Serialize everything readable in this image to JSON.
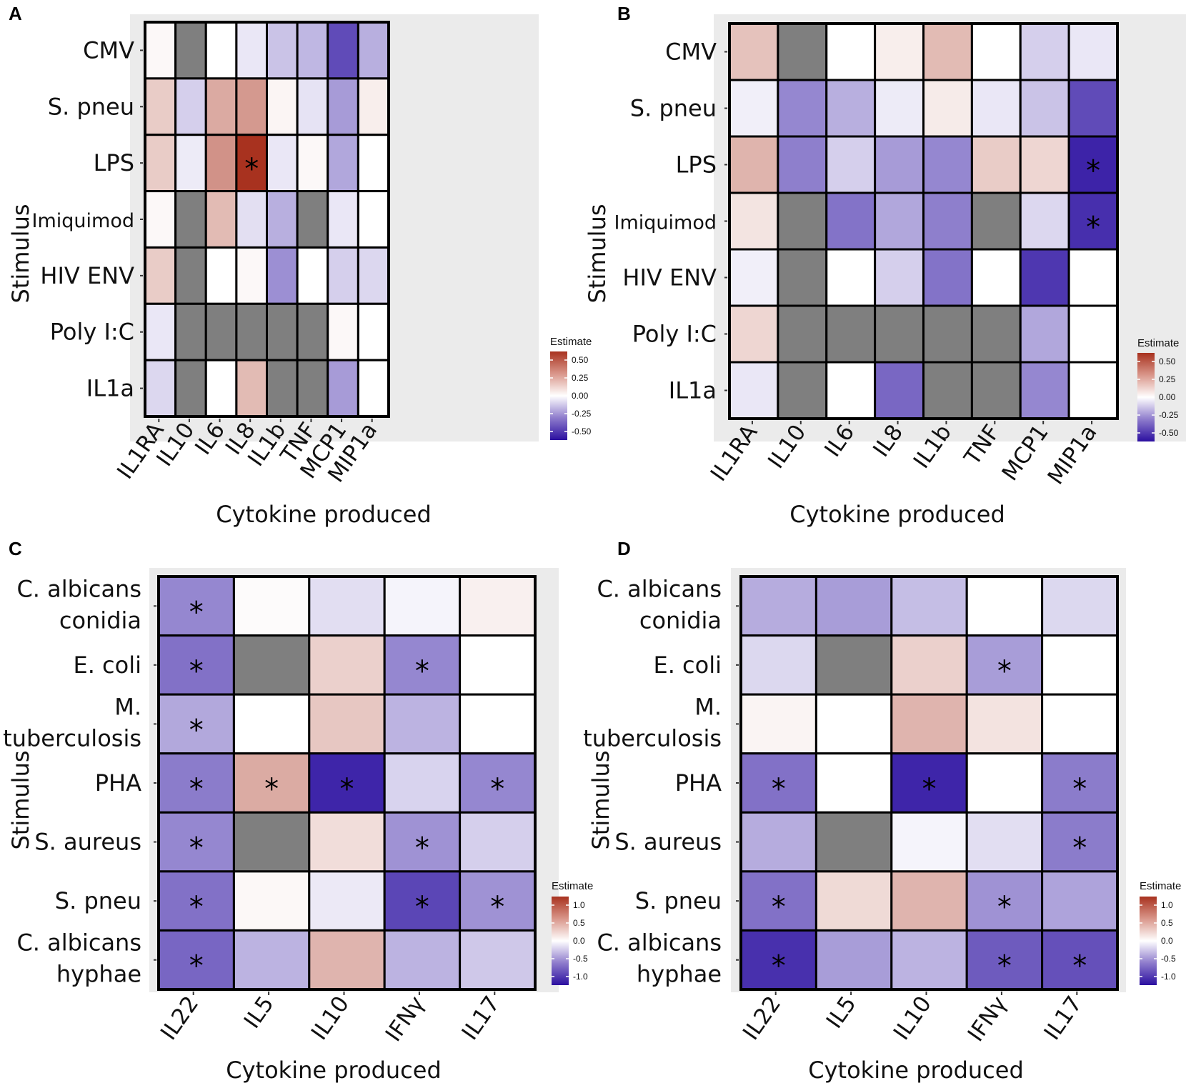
{
  "colors": {
    "low": "#2b0fa0",
    "mid": "#ffffff",
    "high": "#a8321f",
    "na": "#7f7f7f",
    "panel_bg": "#ebebeb"
  },
  "chart_data": [
    {
      "type": "heatmap",
      "panel": "A",
      "xlabel": "Cytokine produced",
      "ylabel": "Stimulus",
      "columns": [
        "IL1RA",
        "IL10",
        "IL6",
        "IL8",
        "IL1b",
        "TNF",
        "MCP1",
        "MIP1a"
      ],
      "rows": [
        "CMV",
        "S. pneu",
        "LPS",
        "Imiquimod",
        "HIV ENV",
        "Poly I:C",
        "IL1a"
      ],
      "values": [
        [
          0.02,
          null,
          0.0,
          -0.06,
          -0.15,
          -0.18,
          -0.45,
          -0.2
        ],
        [
          0.15,
          -0.12,
          0.25,
          0.3,
          0.03,
          -0.07,
          -0.25,
          0.05
        ],
        [
          0.15,
          -0.05,
          0.32,
          0.6,
          -0.06,
          0.02,
          -0.22,
          0.0
        ],
        [
          0.02,
          null,
          0.2,
          -0.08,
          -0.2,
          null,
          -0.06,
          0.0
        ],
        [
          0.15,
          null,
          0.0,
          0.02,
          -0.28,
          0.0,
          -0.12,
          -0.1
        ],
        [
          -0.06,
          null,
          null,
          null,
          null,
          null,
          0.02,
          0.0
        ],
        [
          -0.1,
          null,
          0.0,
          0.2,
          null,
          null,
          -0.25,
          0.0
        ]
      ],
      "significant": [
        [
          2,
          3
        ]
      ],
      "legend": {
        "title": "Estimate",
        "ticks": [
          "0.50",
          "0.25",
          "0.00",
          "-0.25",
          "-0.50"
        ],
        "range": [
          -0.6,
          0.6
        ]
      }
    },
    {
      "type": "heatmap",
      "panel": "B",
      "xlabel": "Cytokine produced",
      "ylabel": "Stimulus",
      "columns": [
        "IL1RA",
        "IL10",
        "IL6",
        "IL8",
        "IL1b",
        "TNF",
        "MCP1",
        "MIP1a"
      ],
      "rows": [
        "CMV",
        "S. pneu",
        "LPS",
        "Imiquimod",
        "HIV ENV",
        "Poly I:C",
        "IL1a"
      ],
      "values": [
        [
          0.18,
          null,
          0.0,
          0.05,
          0.2,
          0.0,
          -0.12,
          -0.06
        ],
        [
          -0.04,
          -0.3,
          -0.2,
          -0.05,
          0.06,
          -0.06,
          -0.15,
          -0.45
        ],
        [
          0.22,
          -0.32,
          -0.12,
          -0.25,
          -0.3,
          0.15,
          0.12,
          -0.55
        ],
        [
          0.08,
          null,
          -0.35,
          -0.22,
          -0.32,
          null,
          -0.1,
          -0.52
        ],
        [
          -0.04,
          null,
          0.0,
          -0.12,
          -0.35,
          0.0,
          -0.5,
          0.0
        ],
        [
          0.12,
          null,
          null,
          null,
          null,
          null,
          -0.22,
          0.0
        ],
        [
          -0.06,
          null,
          0.0,
          -0.38,
          null,
          null,
          -0.3,
          0.0
        ]
      ],
      "significant": [
        [
          2,
          7
        ],
        [
          3,
          7
        ]
      ],
      "legend": {
        "title": "Estimate",
        "ticks": [
          "0.50",
          "0.25",
          "0.00",
          "-0.25",
          "-0.50"
        ],
        "range": [
          -0.6,
          0.6
        ]
      }
    },
    {
      "type": "heatmap",
      "panel": "C",
      "xlabel": "Cytokine produced",
      "ylabel": "Stimulus",
      "columns": [
        "IL22",
        "IL5",
        "IL10",
        "IFNγ",
        "IL17"
      ],
      "rows": [
        [
          "C. albicans",
          "conidia"
        ],
        [
          "E. coli"
        ],
        [
          "M.",
          "tuberculosis"
        ],
        [
          "PHA"
        ],
        [
          "S. aureus"
        ],
        [
          "S. pneu"
        ],
        [
          "C. albicans",
          "hyphae"
        ]
      ],
      "values": [
        [
          -0.55,
          0.02,
          -0.15,
          -0.05,
          0.08
        ],
        [
          -0.65,
          null,
          0.25,
          -0.55,
          0.0
        ],
        [
          -0.4,
          0.0,
          0.3,
          -0.35,
          0.0
        ],
        [
          -0.6,
          0.45,
          -1.0,
          -0.2,
          -0.55
        ],
        [
          -0.55,
          null,
          0.18,
          -0.5,
          -0.22
        ],
        [
          -0.65,
          0.04,
          -0.1,
          -0.85,
          -0.5
        ],
        [
          -0.7,
          -0.35,
          0.4,
          -0.35,
          -0.25
        ]
      ],
      "significant": [
        [
          0,
          0
        ],
        [
          1,
          0
        ],
        [
          1,
          3
        ],
        [
          2,
          0
        ],
        [
          3,
          0
        ],
        [
          3,
          1
        ],
        [
          3,
          2
        ],
        [
          3,
          4
        ],
        [
          4,
          0
        ],
        [
          4,
          3
        ],
        [
          5,
          0
        ],
        [
          5,
          3
        ],
        [
          5,
          4
        ],
        [
          6,
          0
        ]
      ],
      "legend": {
        "title": "Estimate",
        "ticks": [
          "1.0",
          "0.5",
          "0.0",
          "-0.5",
          "-1.0"
        ],
        "range": [
          -1.1,
          1.1
        ]
      }
    },
    {
      "type": "heatmap",
      "panel": "D",
      "xlabel": "Cytokine produced",
      "ylabel": "Stimulus",
      "columns": [
        "IL22",
        "IL5",
        "IL10",
        "IFNγ",
        "IL17"
      ],
      "rows": [
        [
          "C. albicans",
          "conidia"
        ],
        [
          "E. coli"
        ],
        [
          "M.",
          "tuberculosis"
        ],
        [
          "PHA"
        ],
        [
          "S. aureus"
        ],
        [
          "S. pneu"
        ],
        [
          "C. albicans",
          "hyphae"
        ]
      ],
      "values": [
        [
          -0.38,
          -0.45,
          -0.3,
          0.0,
          -0.18
        ],
        [
          -0.18,
          null,
          0.25,
          -0.45,
          0.0
        ],
        [
          0.06,
          0.0,
          0.4,
          0.15,
          0.0
        ],
        [
          -0.65,
          0.0,
          -1.0,
          0.0,
          -0.6
        ],
        [
          -0.38,
          null,
          -0.05,
          -0.15,
          -0.6
        ],
        [
          -0.65,
          0.2,
          0.4,
          -0.5,
          -0.42
        ],
        [
          -0.95,
          -0.45,
          -0.35,
          -0.75,
          -0.8
        ]
      ],
      "significant": [
        [
          1,
          3
        ],
        [
          3,
          0
        ],
        [
          3,
          2
        ],
        [
          3,
          4
        ],
        [
          4,
          4
        ],
        [
          5,
          0
        ],
        [
          5,
          3
        ],
        [
          6,
          0
        ],
        [
          6,
          3
        ],
        [
          6,
          4
        ]
      ],
      "legend": {
        "title": "Estimate",
        "ticks": [
          "1.0",
          "0.5",
          "0.0",
          "-0.5",
          "-1.0"
        ],
        "range": [
          -1.1,
          1.1
        ]
      }
    }
  ]
}
